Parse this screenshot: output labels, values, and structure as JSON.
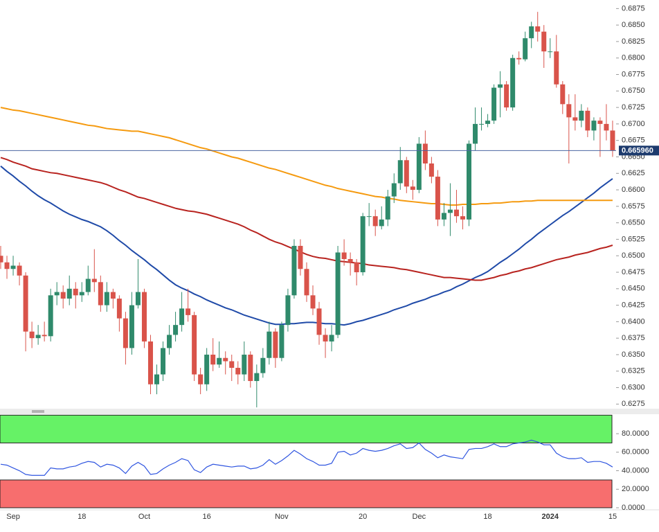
{
  "chart_data": [
    {
      "type": "candlestick",
      "categories": [
        null,
        null,
        "Sep",
        null,
        null,
        null,
        null,
        null,
        null,
        null,
        null,
        null,
        null,
        "18",
        null,
        null,
        null,
        null,
        null,
        null,
        null,
        null,
        null,
        "Oct",
        null,
        null,
        null,
        null,
        null,
        null,
        null,
        null,
        null,
        "16",
        null,
        null,
        null,
        null,
        null,
        null,
        null,
        null,
        null,
        null,
        null,
        "Nov",
        null,
        null,
        null,
        null,
        null,
        null,
        null,
        null,
        null,
        null,
        null,
        null,
        "20",
        null,
        null,
        null,
        null,
        null,
        null,
        null,
        null,
        "Dec",
        null,
        null,
        null,
        null,
        null,
        null,
        null,
        null,
        null,
        null,
        "18",
        null,
        null,
        null,
        null,
        null,
        null,
        null,
        null,
        null,
        "2024",
        null,
        null,
        null,
        null,
        null,
        null,
        null,
        null,
        null,
        "15"
      ],
      "open": [
        0.65,
        0.649,
        0.648,
        0.6485,
        0.647,
        0.6385,
        0.6375,
        0.638,
        0.6378,
        0.644,
        0.6445,
        0.6435,
        0.645,
        0.644,
        0.6445,
        0.6465,
        0.646,
        0.6425,
        0.6445,
        0.6435,
        0.6405,
        0.636,
        0.6425,
        0.6445,
        0.637,
        0.6305,
        0.632,
        0.636,
        0.638,
        0.6395,
        0.642,
        0.641,
        0.632,
        0.6305,
        0.635,
        0.6335,
        0.6345,
        0.634,
        0.633,
        0.632,
        0.635,
        0.631,
        0.6322,
        0.6345,
        0.6385,
        0.6345,
        0.6395,
        0.644,
        0.6515,
        0.648,
        0.644,
        0.642,
        0.638,
        0.637,
        0.638,
        0.6505,
        0.6495,
        0.649,
        0.6475,
        0.656,
        0.656,
        0.6545,
        0.6555,
        0.659,
        0.661,
        0.6645,
        0.6605,
        0.66,
        0.667,
        0.664,
        0.662,
        0.6555,
        0.6565,
        0.657,
        0.656,
        0.6555,
        0.667,
        0.67,
        0.67,
        0.6705,
        0.6755,
        0.676,
        0.6725,
        0.68,
        0.6798,
        0.683,
        0.6848,
        0.684,
        0.681,
        0.681,
        0.676,
        0.673,
        0.671,
        0.6705,
        0.672,
        0.669,
        0.6705,
        0.67,
        0.669
      ],
      "high": [
        0.6515,
        0.65,
        0.65,
        0.649,
        0.6475,
        0.64,
        0.6395,
        0.64,
        0.645,
        0.646,
        0.6455,
        0.647,
        0.646,
        0.646,
        0.6485,
        0.651,
        0.647,
        0.646,
        0.645,
        0.644,
        0.6415,
        0.6445,
        0.6495,
        0.645,
        0.638,
        0.6335,
        0.637,
        0.6395,
        0.6415,
        0.6445,
        0.645,
        0.6415,
        0.633,
        0.636,
        0.6375,
        0.637,
        0.6355,
        0.635,
        0.634,
        0.637,
        0.6355,
        0.6335,
        0.636,
        0.64,
        0.639,
        0.64,
        0.645,
        0.6525,
        0.6525,
        0.649,
        0.6455,
        0.643,
        0.639,
        0.6395,
        0.6515,
        0.6525,
        0.6505,
        0.6495,
        0.6565,
        0.658,
        0.657,
        0.6575,
        0.66,
        0.6625,
        0.6665,
        0.665,
        0.6615,
        0.668,
        0.669,
        0.665,
        0.663,
        0.658,
        0.661,
        0.66,
        0.6575,
        0.6675,
        0.6725,
        0.6725,
        0.6715,
        0.676,
        0.678,
        0.6765,
        0.6805,
        0.681,
        0.684,
        0.6855,
        0.687,
        0.685,
        0.683,
        0.6835,
        0.6765,
        0.6745,
        0.6745,
        0.673,
        0.6725,
        0.671,
        0.671,
        0.673,
        0.6705
      ],
      "low": [
        0.648,
        0.6465,
        0.647,
        0.6455,
        0.6355,
        0.636,
        0.6365,
        0.637,
        0.637,
        0.6425,
        0.642,
        0.6425,
        0.642,
        0.643,
        0.644,
        0.6445,
        0.6415,
        0.6415,
        0.642,
        0.6385,
        0.6335,
        0.635,
        0.642,
        0.636,
        0.629,
        0.629,
        0.631,
        0.635,
        0.637,
        0.6385,
        0.64,
        0.631,
        0.629,
        0.6295,
        0.6325,
        0.633,
        0.632,
        0.631,
        0.6305,
        0.631,
        0.63,
        0.627,
        0.6315,
        0.6335,
        0.633,
        0.634,
        0.6385,
        0.6435,
        0.647,
        0.643,
        0.641,
        0.6365,
        0.6345,
        0.6355,
        0.6375,
        0.6485,
        0.647,
        0.6455,
        0.647,
        0.6545,
        0.653,
        0.654,
        0.6545,
        0.658,
        0.66,
        0.6595,
        0.6585,
        0.6595,
        0.663,
        0.661,
        0.6545,
        0.6545,
        0.653,
        0.655,
        0.654,
        0.6545,
        0.666,
        0.669,
        0.6695,
        0.67,
        0.671,
        0.672,
        0.672,
        0.679,
        0.6795,
        0.6815,
        0.6825,
        0.6785,
        0.68,
        0.6755,
        0.6715,
        0.664,
        0.669,
        0.6695,
        0.668,
        0.6675,
        0.665,
        0.6675,
        0.665
      ],
      "close": [
        0.649,
        0.648,
        0.6485,
        0.647,
        0.6385,
        0.6375,
        0.638,
        0.6378,
        0.644,
        0.6445,
        0.6435,
        0.645,
        0.644,
        0.6445,
        0.6465,
        0.646,
        0.6425,
        0.6445,
        0.6435,
        0.6405,
        0.636,
        0.6425,
        0.6445,
        0.637,
        0.6305,
        0.632,
        0.636,
        0.638,
        0.6395,
        0.642,
        0.641,
        0.632,
        0.6305,
        0.635,
        0.6335,
        0.6345,
        0.634,
        0.633,
        0.632,
        0.635,
        0.631,
        0.6322,
        0.6345,
        0.6385,
        0.6345,
        0.6395,
        0.644,
        0.6515,
        0.648,
        0.644,
        0.642,
        0.638,
        0.637,
        0.638,
        0.6505,
        0.6495,
        0.649,
        0.6475,
        0.656,
        0.656,
        0.6545,
        0.6555,
        0.659,
        0.661,
        0.6645,
        0.6605,
        0.66,
        0.667,
        0.664,
        0.662,
        0.6555,
        0.6565,
        0.657,
        0.656,
        0.6555,
        0.667,
        0.67,
        0.67,
        0.6705,
        0.6755,
        0.676,
        0.6725,
        0.68,
        0.6798,
        0.683,
        0.6848,
        0.684,
        0.681,
        0.681,
        0.676,
        0.673,
        0.671,
        0.6705,
        0.672,
        0.669,
        0.6705,
        0.67,
        0.669,
        0.666
      ],
      "up_color": "#2f8a6b",
      "down_color": "#d9534a",
      "series": [
        {
          "color": "#1f4aa8",
          "values": [
            0.6636,
            0.6628,
            0.6621,
            0.6613,
            0.6606,
            0.6598,
            0.6591,
            0.6585,
            0.658,
            0.6574,
            0.6568,
            0.6563,
            0.6559,
            0.6555,
            0.6552,
            0.6548,
            0.6544,
            0.6538,
            0.6531,
            0.6523,
            0.6516,
            0.6508,
            0.6501,
            0.6494,
            0.6486,
            0.6479,
            0.6471,
            0.6463,
            0.6456,
            0.6451,
            0.6447,
            0.6442,
            0.6438,
            0.6433,
            0.6429,
            0.6425,
            0.6421,
            0.6418,
            0.6414,
            0.641,
            0.6407,
            0.6404,
            0.6401,
            0.6398,
            0.6396,
            0.6396,
            0.6397,
            0.6397,
            0.6398,
            0.6399,
            0.6399,
            0.6398,
            0.6397,
            0.6397,
            0.6396,
            0.6395,
            0.6397,
            0.64,
            0.6402,
            0.6405,
            0.6408,
            0.6411,
            0.6414,
            0.6418,
            0.6421,
            0.6424,
            0.6428,
            0.6431,
            0.6434,
            0.6438,
            0.6441,
            0.6445,
            0.6448,
            0.6453,
            0.6457,
            0.6462,
            0.6467,
            0.6471,
            0.6476,
            0.6483,
            0.649,
            0.6496,
            0.6503,
            0.651,
            0.6518,
            0.6525,
            0.6533,
            0.654,
            0.6547,
            0.6554,
            0.6561,
            0.6567,
            0.6574,
            0.6581,
            0.6588,
            0.6595,
            0.6603,
            0.661,
            0.6617
          ]
        },
        {
          "color": "#b8231f",
          "values": [
            0.6649,
            0.6646,
            0.6642,
            0.6639,
            0.6636,
            0.6632,
            0.663,
            0.6628,
            0.6626,
            0.6625,
            0.6623,
            0.6621,
            0.6619,
            0.6617,
            0.6615,
            0.6613,
            0.6611,
            0.6608,
            0.6604,
            0.66,
            0.6597,
            0.6593,
            0.6589,
            0.6587,
            0.6584,
            0.6581,
            0.6578,
            0.6575,
            0.6572,
            0.657,
            0.6568,
            0.6567,
            0.6565,
            0.6563,
            0.656,
            0.6557,
            0.6554,
            0.6551,
            0.6548,
            0.6544,
            0.6539,
            0.6535,
            0.653,
            0.6525,
            0.6521,
            0.6518,
            0.6514,
            0.651,
            0.6506,
            0.6502,
            0.6499,
            0.6497,
            0.6496,
            0.6494,
            0.6492,
            0.6491,
            0.649,
            0.6489,
            0.6488,
            0.6486,
            0.6485,
            0.6484,
            0.6483,
            0.6482,
            0.648,
            0.6479,
            0.6477,
            0.6475,
            0.6473,
            0.6471,
            0.6469,
            0.6467,
            0.6467,
            0.6466,
            0.6465,
            0.6464,
            0.6463,
            0.6463,
            0.6465,
            0.6467,
            0.647,
            0.6472,
            0.6475,
            0.6477,
            0.648,
            0.6482,
            0.6485,
            0.6488,
            0.6491,
            0.6494,
            0.6496,
            0.6498,
            0.6501,
            0.6503,
            0.6505,
            0.6508,
            0.6511,
            0.6513,
            0.6516
          ]
        },
        {
          "color": "#f59a0f",
          "values": [
            0.6725,
            0.6723,
            0.6721,
            0.672,
            0.6718,
            0.6716,
            0.6714,
            0.6712,
            0.671,
            0.6708,
            0.6706,
            0.6704,
            0.6702,
            0.67,
            0.6698,
            0.6697,
            0.6695,
            0.6693,
            0.6692,
            0.6691,
            0.669,
            0.6689,
            0.6689,
            0.6687,
            0.6685,
            0.6683,
            0.6681,
            0.6679,
            0.6676,
            0.6673,
            0.667,
            0.6667,
            0.6664,
            0.6662,
            0.6659,
            0.6656,
            0.6653,
            0.665,
            0.6648,
            0.6645,
            0.6642,
            0.6639,
            0.6636,
            0.6633,
            0.6631,
            0.6628,
            0.6625,
            0.6622,
            0.6619,
            0.6616,
            0.6613,
            0.661,
            0.6607,
            0.6605,
            0.6602,
            0.66,
            0.6598,
            0.6596,
            0.6594,
            0.6592,
            0.659,
            0.6589,
            0.6587,
            0.6586,
            0.6584,
            0.6583,
            0.6582,
            0.6581,
            0.658,
            0.6579,
            0.6579,
            0.6578,
            0.6577,
            0.6577,
            0.6578,
            0.6578,
            0.6578,
            0.6579,
            0.6579,
            0.658,
            0.658,
            0.6581,
            0.6582,
            0.6582,
            0.6583,
            0.6583,
            0.6584,
            0.6584,
            0.6584,
            0.6584,
            0.6584,
            0.6584,
            0.6584,
            0.6584,
            0.6584,
            0.6584,
            0.6584,
            0.6584,
            0.6584
          ]
        }
      ],
      "last_price": {
        "value": 0.66596,
        "label": "0.665960"
      },
      "last_price_color": "#1d3b6e",
      "ylim": [
        0.6268,
        0.6888
      ],
      "yticks": [
        0.6275,
        {
          "value": 0.63,
          "label": "0.6300"
        },
        0.6325,
        {
          "value": 0.635,
          "label": "0.6350"
        },
        0.6375,
        {
          "value": 0.64,
          "label": "0.6400"
        },
        0.6425,
        {
          "value": 0.645,
          "label": "0.6450"
        },
        0.6475,
        {
          "value": 0.65,
          "label": "0.6500"
        },
        0.6525,
        {
          "value": 0.655,
          "label": "0.6550"
        },
        0.6575,
        {
          "value": 0.66,
          "label": "0.6600"
        },
        0.6625,
        {
          "value": 0.665,
          "label": "0.6650"
        },
        0.6675,
        {
          "value": 0.67,
          "label": "0.6700"
        },
        0.6725,
        {
          "value": 0.675,
          "label": "0.6750"
        },
        0.6775,
        {
          "value": 0.68,
          "label": "0.6800"
        },
        0.6825,
        {
          "value": 0.685,
          "label": "0.6850"
        },
        0.6875
      ]
    },
    {
      "type": "line",
      "series": [
        {
          "color": "#2f55e0",
          "values": [
            47,
            46,
            43,
            40,
            36,
            35,
            35,
            35,
            43,
            42,
            42,
            44,
            45,
            48,
            50,
            49,
            44,
            47,
            46,
            43,
            37,
            45,
            49,
            45,
            36,
            37,
            42,
            46,
            49,
            53,
            51,
            41,
            38,
            44,
            47,
            46,
            45,
            44,
            45,
            45,
            42,
            43,
            46,
            52,
            47,
            51,
            56,
            62,
            58,
            53,
            50,
            46,
            46,
            48,
            60,
            61,
            57,
            59,
            64,
            62,
            61,
            62,
            64,
            67,
            69,
            64,
            65,
            70,
            63,
            59,
            54,
            57,
            55,
            54,
            53,
            63,
            64,
            64,
            66,
            69,
            66,
            66,
            69,
            70,
            71,
            73,
            71,
            68,
            68,
            59,
            55,
            53,
            53,
            54,
            49,
            50,
            50,
            48,
            44
          ]
        }
      ],
      "bands": [
        {
          "from": 70,
          "to": 100,
          "color": "#66f266"
        },
        {
          "from": 0,
          "to": 30,
          "color": "#f76e6e"
        }
      ],
      "ylim": [
        0,
        101
      ],
      "yticks": [
        {
          "value": 0,
          "label": "0.0000"
        },
        {
          "value": 20,
          "label": "20.0000"
        },
        {
          "value": 40,
          "label": "40.0000"
        },
        {
          "value": 60,
          "label": "60.0000"
        },
        {
          "value": 80,
          "label": "80.0000"
        }
      ]
    }
  ]
}
